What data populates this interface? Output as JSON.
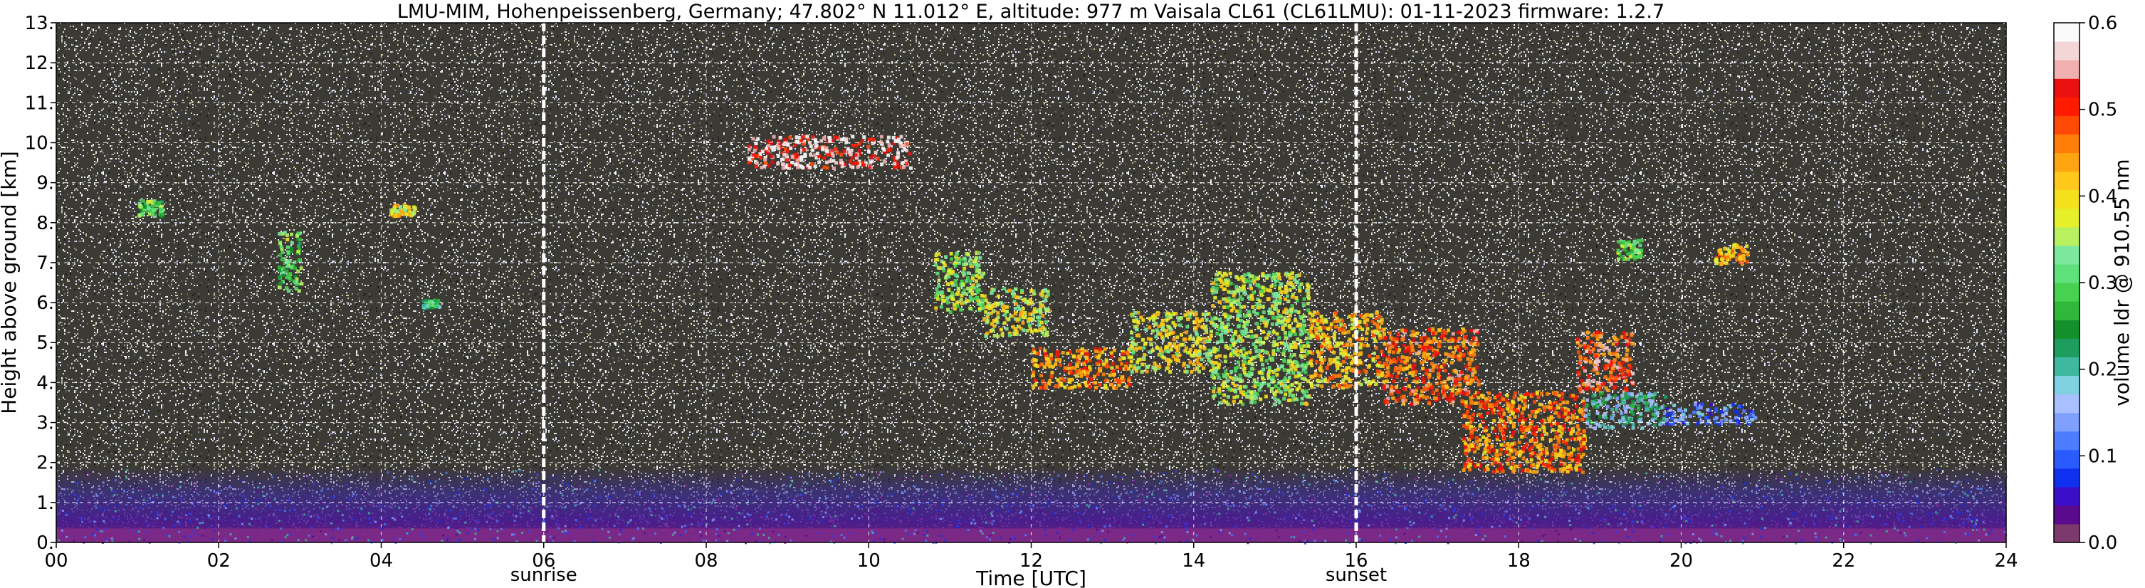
{
  "title": "LMU-MIM, Hohenpeissenberg, Germany; 47.802° N 11.012° E, altitude: 977 m    Vaisala CL61 (CL61LMU): 01-11-2023    firmware: 1.2.7",
  "chart_data": {
    "type": "heatmap",
    "xlabel": "Time [UTC]",
    "ylabel": "Height above ground [km]",
    "xlim": [
      0,
      24
    ],
    "ylim": [
      0,
      13
    ],
    "x_ticks": [
      0,
      2,
      4,
      6,
      8,
      10,
      12,
      14,
      16,
      18,
      20,
      22,
      24
    ],
    "x_tick_labels": [
      "00",
      "02",
      "04",
      "06",
      "08",
      "10",
      "12",
      "14",
      "16",
      "18",
      "20",
      "22",
      "24"
    ],
    "y_ticks": [
      0,
      1,
      2,
      3,
      4,
      5,
      6,
      7,
      8,
      9,
      10,
      11,
      12,
      13
    ],
    "y_tick_labels": [
      "0.",
      "1.",
      "2.",
      "3.",
      "4.",
      "5.",
      "6.",
      "7.",
      "8.",
      "9.",
      "10.",
      "11.",
      "12.",
      "13."
    ],
    "grid": true,
    "events": [
      {
        "label": "sunrise",
        "time": 6.0
      },
      {
        "label": "sunset",
        "time": 16.0
      }
    ],
    "colorbar": {
      "label": "volume ldr @ 910.55 nm",
      "range": [
        0.0,
        0.6
      ],
      "ticks": [
        0.0,
        0.1,
        0.2,
        0.3,
        0.4,
        0.5,
        0.6
      ],
      "tick_labels": [
        "0.0",
        "0.1",
        "0.2",
        "0.3",
        "0.4",
        "0.5",
        "0.6"
      ],
      "colors": [
        "#7b3a6b",
        "#5a0a8c",
        "#3b0fc9",
        "#1030f0",
        "#2a5bff",
        "#4d7dff",
        "#7fa0ff",
        "#a8c0ff",
        "#7fd0e0",
        "#3fb8a0",
        "#1e9e5e",
        "#14902a",
        "#2fb83a",
        "#46d150",
        "#5ee07a",
        "#7ce89c",
        "#b8f060",
        "#e6f02a",
        "#f5e01c",
        "#ffc81a",
        "#ffa512",
        "#ff7e0a",
        "#ff4a05",
        "#ff1a00",
        "#e81010",
        "#f0b0b0",
        "#f5d6d6",
        "#fafafa"
      ]
    },
    "features": [
      {
        "name": "boundary layer",
        "x0": 0.0,
        "x1": 24.0,
        "y0": 0.0,
        "y1": 1.9
      },
      {
        "name": "cloud",
        "t": [
          1.0,
          1.3
        ],
        "h": [
          8.2,
          8.6
        ],
        "ldr": 0.3
      },
      {
        "name": "cloud",
        "t": [
          2.7,
          3.0
        ],
        "h": [
          6.3,
          7.8
        ],
        "ldr": 0.3
      },
      {
        "name": "cloud",
        "t": [
          4.1,
          4.4
        ],
        "h": [
          8.2,
          8.5
        ],
        "ldr": 0.4
      },
      {
        "name": "cloud",
        "t": [
          4.5,
          4.7
        ],
        "h": [
          5.9,
          6.1
        ],
        "ldr": 0.25
      },
      {
        "name": "cloud",
        "t": [
          8.5,
          10.5
        ],
        "h": [
          9.4,
          10.2
        ],
        "ldr": 0.55
      },
      {
        "name": "cloud",
        "t": [
          10.8,
          11.4
        ],
        "h": [
          5.8,
          7.3
        ],
        "ldr": 0.35
      },
      {
        "name": "cloud",
        "t": [
          11.4,
          12.2
        ],
        "h": [
          5.2,
          6.4
        ],
        "ldr": 0.38
      },
      {
        "name": "cloud",
        "t": [
          12.0,
          13.2
        ],
        "h": [
          3.9,
          4.9
        ],
        "ldr": 0.45
      },
      {
        "name": "cloud",
        "t": [
          13.2,
          14.2
        ],
        "h": [
          4.3,
          5.8
        ],
        "ldr": 0.38
      },
      {
        "name": "cloud",
        "t": [
          14.2,
          15.4
        ],
        "h": [
          3.5,
          6.8
        ],
        "ldr": 0.35
      },
      {
        "name": "cloud",
        "t": [
          15.4,
          16.3
        ],
        "h": [
          3.9,
          5.8
        ],
        "ldr": 0.42
      },
      {
        "name": "cloud",
        "t": [
          16.3,
          17.5
        ],
        "h": [
          3.5,
          5.4
        ],
        "ldr": 0.48
      },
      {
        "name": "cloud",
        "t": [
          17.3,
          18.8
        ],
        "h": [
          1.8,
          3.8
        ],
        "ldr": 0.46
      },
      {
        "name": "cloud",
        "t": [
          18.7,
          19.4
        ],
        "h": [
          3.8,
          5.3
        ],
        "ldr": 0.5
      },
      {
        "name": "cloud",
        "t": [
          18.8,
          19.8
        ],
        "h": [
          2.9,
          3.8
        ],
        "ldr": 0.2
      },
      {
        "name": "cloud",
        "t": [
          19.8,
          20.9
        ],
        "h": [
          3.0,
          3.5
        ],
        "ldr": 0.12
      },
      {
        "name": "cloud",
        "t": [
          20.4,
          20.8
        ],
        "h": [
          7.0,
          7.5
        ],
        "ldr": 0.42
      },
      {
        "name": "cloud",
        "t": [
          19.2,
          19.5
        ],
        "h": [
          7.1,
          7.6
        ],
        "ldr": 0.32
      }
    ]
  }
}
